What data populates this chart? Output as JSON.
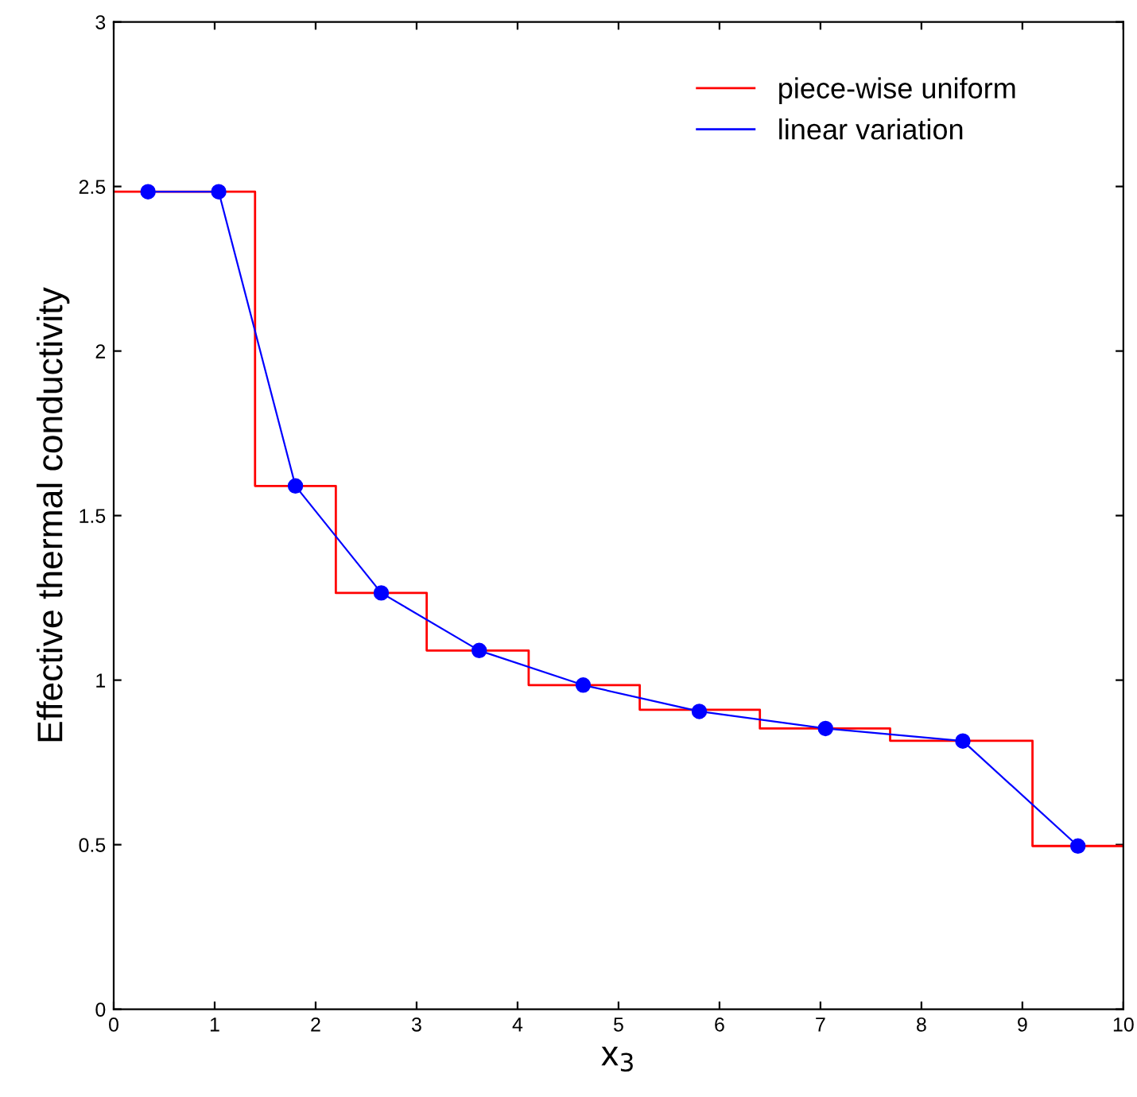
{
  "chart_data": {
    "type": "line",
    "xlabel": "x$_{3}$",
    "ylabel": "Effective thermal conductivity",
    "xlim": [
      0,
      10
    ],
    "ylim": [
      0,
      3
    ],
    "xticks": [
      0,
      1,
      2,
      3,
      4,
      5,
      6,
      7,
      8,
      9,
      10
    ],
    "yticks": [
      0,
      0.5,
      1,
      1.5,
      2,
      2.5,
      3
    ],
    "grid": false,
    "legend": "top right",
    "series": [
      {
        "name": "piece-wise uniform",
        "type": "step",
        "color": "#ff0000",
        "marker": "none",
        "x": [
          0,
          1.4,
          2.2,
          3.1,
          4.11,
          5.21,
          6.4,
          7.69,
          9.1,
          10
        ],
        "values": [
          2.484,
          1.59,
          1.265,
          1.09,
          0.985,
          0.91,
          0.853,
          0.816,
          0.496,
          0.496
        ]
      },
      {
        "name": "linear variation",
        "color": "#0000ff",
        "marker": "circle",
        "x": [
          0.34,
          1.04,
          1.8,
          2.65,
          3.62,
          4.65,
          5.8,
          7.05,
          8.41,
          9.55
        ],
        "values": [
          2.484,
          2.484,
          1.59,
          1.265,
          1.09,
          0.985,
          0.905,
          0.853,
          0.815,
          0.496
        ]
      }
    ]
  }
}
